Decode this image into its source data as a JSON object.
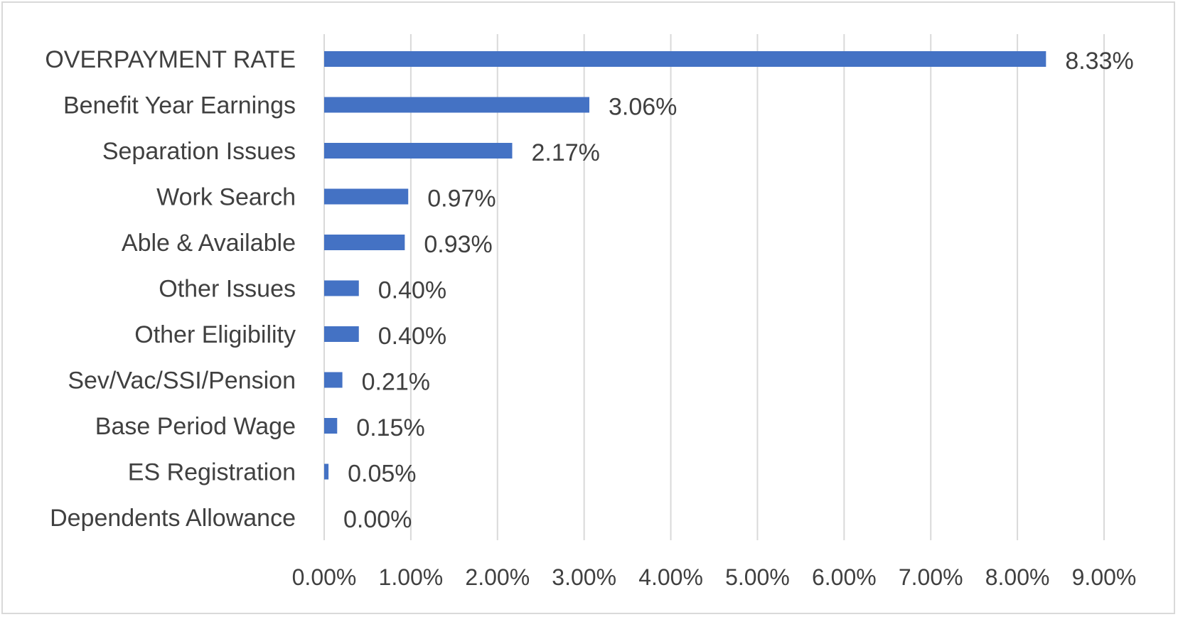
{
  "chart_data": {
    "type": "bar",
    "orientation": "horizontal",
    "categories": [
      "OVERPAYMENT RATE",
      "Benefit Year Earnings",
      "Separation Issues",
      "Work Search",
      "Able & Available",
      "Other Issues",
      "Other Eligibility",
      "Sev/Vac/SSI/Pension",
      "Base Period Wage",
      "ES Registration",
      "Dependents Allowance"
    ],
    "values": [
      8.33,
      3.06,
      2.17,
      0.97,
      0.93,
      0.4,
      0.4,
      0.21,
      0.15,
      0.05,
      0.0
    ],
    "data_labels": [
      "8.33%",
      "3.06%",
      "2.17%",
      "0.97%",
      "0.93%",
      "0.40%",
      "0.40%",
      "0.21%",
      "0.15%",
      "0.05%",
      "0.00%"
    ],
    "xlim": [
      0,
      9
    ],
    "x_ticks": [
      0,
      1,
      2,
      3,
      4,
      5,
      6,
      7,
      8,
      9
    ],
    "x_tick_labels": [
      "0.00%",
      "1.00%",
      "2.00%",
      "3.00%",
      "4.00%",
      "5.00%",
      "6.00%",
      "7.00%",
      "8.00%",
      "9.00%"
    ],
    "title": "",
    "xlabel": "",
    "ylabel": "",
    "grid": "vertical",
    "legend": "none",
    "bar_color": "#4472c4",
    "grid_color": "#d9d9d9",
    "text_color": "#404040"
  }
}
